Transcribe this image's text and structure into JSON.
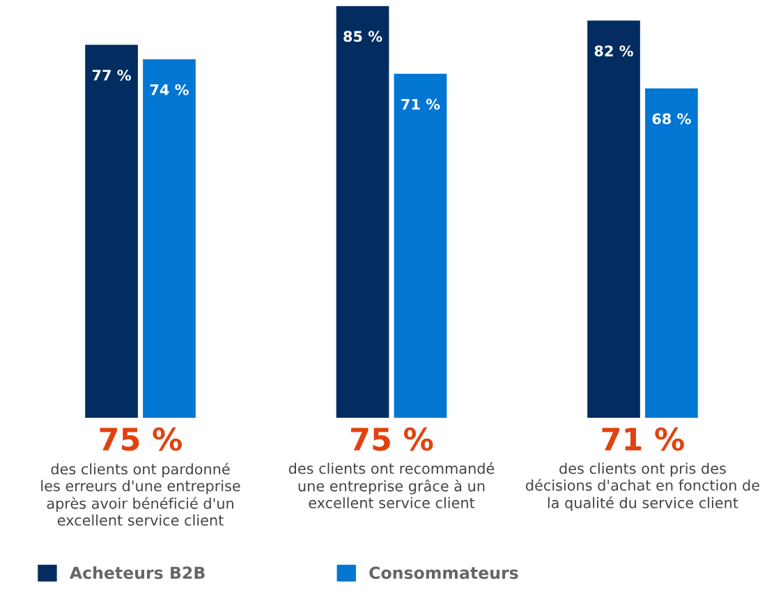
{
  "chart_data": {
    "type": "bar",
    "categories": [
      "des clients ont pardonné\nles erreurs d'une entreprise\naprès avoir bénéficié d'un\nexcellent service client",
      "des clients ont recommandé\nune entreprise grâce à un\nexcellent service client",
      "des clients ont pris des\ndécisions d'achat en fonction de\nla qualité du service client"
    ],
    "annotations": [
      "75 %",
      "75 %",
      "71 %"
    ],
    "series": [
      {
        "name": "Acheteurs B2B",
        "color": "#032d60",
        "values": [
          77,
          85,
          82
        ],
        "value_labels": [
          "77 %",
          "85 %",
          "82 %"
        ]
      },
      {
        "name": "Consommateurs",
        "color": "#0176d3",
        "values": [
          74,
          71,
          68
        ],
        "value_labels": [
          "74 %",
          "71 %",
          "68 %"
        ]
      }
    ],
    "legend": "bottom left"
  }
}
